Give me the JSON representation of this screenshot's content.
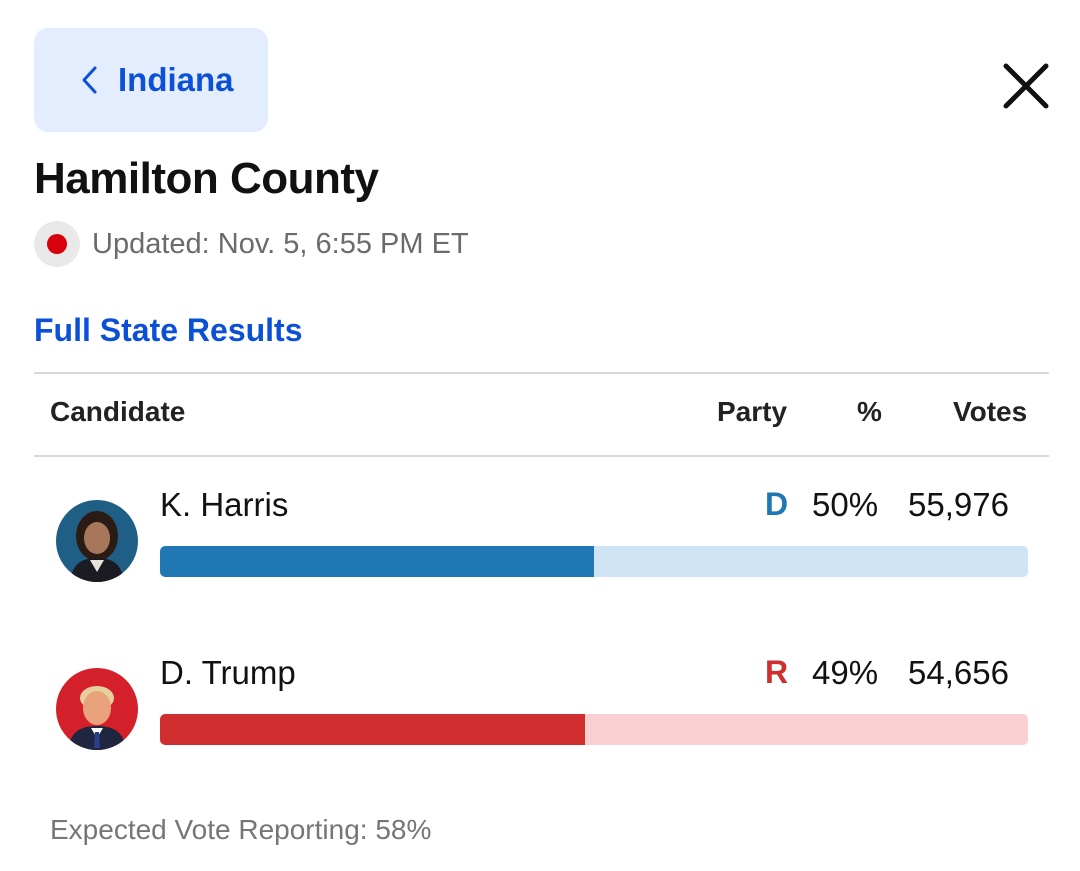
{
  "header": {
    "back_label": "Indiana",
    "back_icon": "chevron-left-icon",
    "close_icon": "close-icon",
    "accent_color": "#0b50d6"
  },
  "title": "Hamilton County",
  "status": {
    "updated_text": "Updated: Nov. 5, 6:55 PM ET",
    "live_indicator_color": "#d9000d"
  },
  "full_results_link": "Full State Results",
  "table": {
    "columns": {
      "candidate": "Candidate",
      "party": "Party",
      "percent": "%",
      "votes": "Votes"
    },
    "rows": [
      {
        "name": "K. Harris",
        "party": "D",
        "percent": "50%",
        "votes": "55,976",
        "share": 0.5,
        "party_color": "#1f78b4",
        "track_color": "#cfe4f5"
      },
      {
        "name": "D. Trump",
        "party": "R",
        "percent": "49%",
        "votes": "54,656",
        "share": 0.49,
        "party_color": "#d12f2f",
        "track_color": "#f9d0d2"
      }
    ]
  },
  "footer": {
    "expected_reporting": "Expected Vote Reporting: 58%"
  }
}
